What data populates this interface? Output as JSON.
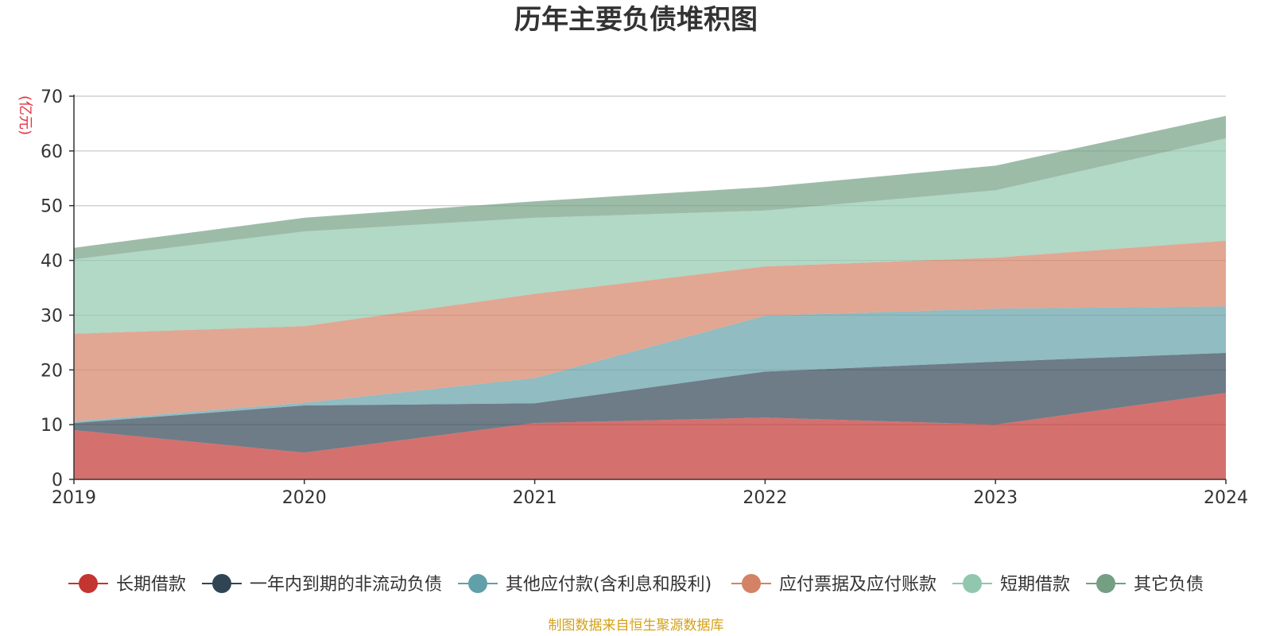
{
  "chart_data": {
    "type": "area",
    "stacked": true,
    "title": "历年主要负债堆积图",
    "unit_label": "(亿元)",
    "x": [
      "2019",
      "2020",
      "2021",
      "2022",
      "2023",
      "2024"
    ],
    "ylim": [
      0,
      70
    ],
    "yticks": [
      0,
      10,
      20,
      30,
      40,
      50,
      60,
      70
    ],
    "grid": true,
    "legend_position": "bottom",
    "series": [
      {
        "name": "长期借款",
        "color": "#c23531",
        "values": [
          9.0,
          4.9,
          10.3,
          11.3,
          10.0,
          15.8
        ]
      },
      {
        "name": "一年内到期的非流动负债",
        "color": "#2f4554",
        "values": [
          1.3,
          8.6,
          3.6,
          8.4,
          11.5,
          7.3
        ]
      },
      {
        "name": "其他应付款(含利息和股利)",
        "color": "#61a0a8",
        "values": [
          0.3,
          0.5,
          4.6,
          10.2,
          9.7,
          8.5
        ]
      },
      {
        "name": "应付票据及应付账款",
        "color": "#d48265",
        "values": [
          16.0,
          14.0,
          15.4,
          9.0,
          9.3,
          12.0
        ]
      },
      {
        "name": "短期借款",
        "color": "#91c7ae",
        "values": [
          13.6,
          17.3,
          13.9,
          10.2,
          12.3,
          18.7
        ]
      },
      {
        "name": "其它负债",
        "color": "#749f83",
        "values": [
          2.1,
          2.5,
          3.0,
          4.3,
          4.5,
          4.1
        ]
      }
    ],
    "source_note": "制图数据来自恒生聚源数据库"
  }
}
